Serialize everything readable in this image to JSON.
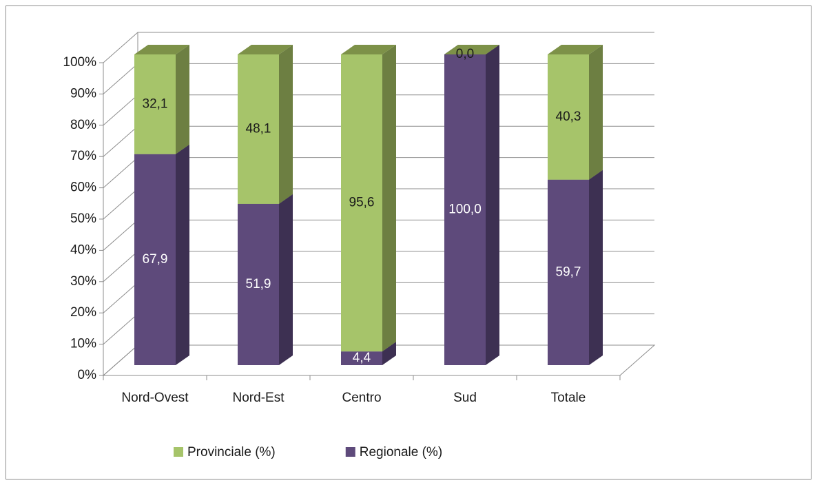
{
  "chart_data": {
    "type": "bar3d_stacked",
    "categories": [
      "Nord-Ovest",
      "Nord-Est",
      "Centro",
      "Sud",
      "Totale"
    ],
    "series": [
      {
        "name": "Provinciale (%)",
        "color": "#a6c46a",
        "side_color": "#6d7f42",
        "top_color": "#7d9148",
        "label_color": "#1a1a1a",
        "values": [
          32.1,
          48.1,
          95.6,
          0.0,
          40.3
        ],
        "value_labels": [
          "32,1",
          "48,1",
          "95,6",
          "0,0",
          "40,3"
        ]
      },
      {
        "name": "Regionale (%)",
        "color": "#5e4a7b",
        "side_color": "#3d3052",
        "top_color": "#4a3b63",
        "label_color": "#ffffff",
        "values": [
          67.9,
          51.9,
          4.4,
          100.0,
          59.7
        ],
        "value_labels": [
          "67,9",
          "51,9",
          "4,4",
          "100,0",
          "59,7"
        ]
      }
    ],
    "ylim": [
      0,
      100
    ],
    "yticks": [
      {
        "value": 0,
        "label": "0%"
      },
      {
        "value": 10,
        "label": "10%"
      },
      {
        "value": 20,
        "label": "20%"
      },
      {
        "value": 30,
        "label": "30%"
      },
      {
        "value": 40,
        "label": "40%"
      },
      {
        "value": 50,
        "label": "50%"
      },
      {
        "value": 60,
        "label": "60%"
      },
      {
        "value": 70,
        "label": "70%"
      },
      {
        "value": 80,
        "label": "80%"
      },
      {
        "value": 90,
        "label": "90%"
      },
      {
        "value": 100,
        "label": "100%"
      }
    ],
    "grid": true,
    "legend": "bottom"
  }
}
